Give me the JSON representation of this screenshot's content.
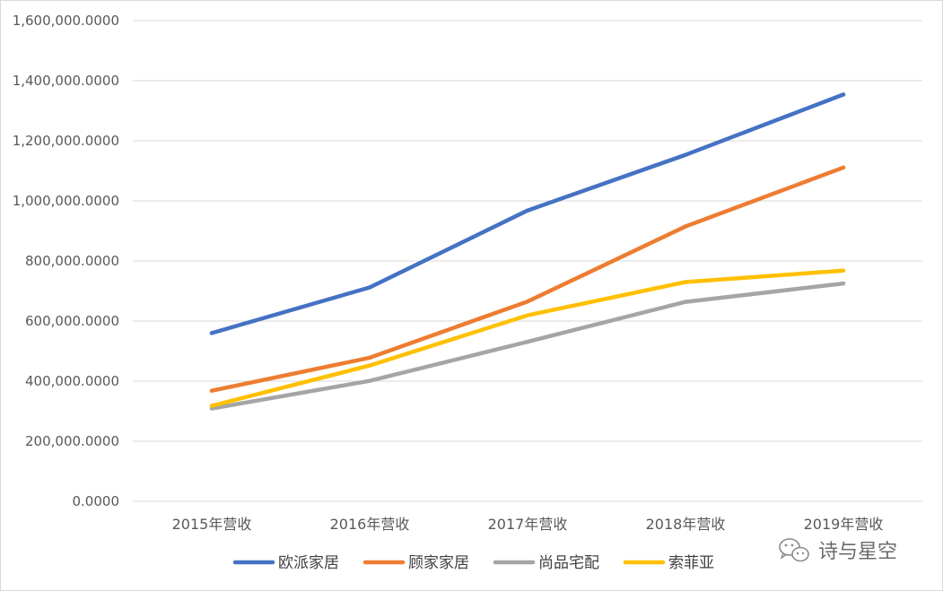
{
  "chart_data": {
    "type": "line",
    "title": "",
    "xlabel": "",
    "ylabel": "",
    "categories": [
      "2015年营收",
      "2016年营收",
      "2017年营收",
      "2018年营收",
      "2019年营收"
    ],
    "ylim": [
      0,
      1600000
    ],
    "y_ticks": [
      {
        "value": 0,
        "label": "0.0000"
      },
      {
        "value": 200000,
        "label": "200,000.0000"
      },
      {
        "value": 400000,
        "label": "400,000.0000"
      },
      {
        "value": 600000,
        "label": "600,000.0000"
      },
      {
        "value": 800000,
        "label": "800,000.0000"
      },
      {
        "value": 1000000,
        "label": "1,000,000.0000"
      },
      {
        "value": 1200000,
        "label": "1,200,000.0000"
      },
      {
        "value": 1400000,
        "label": "1,400,000.0000"
      },
      {
        "value": 1600000,
        "label": "1,600,000.0000"
      }
    ],
    "grid": "horizontal",
    "legend_position": "bottom",
    "series": [
      {
        "name": "欧派家居",
        "color": "#4472C4",
        "values": [
          560000,
          712000,
          968000,
          1153000,
          1354000
        ]
      },
      {
        "name": "顾家家居",
        "color": "#ED7D31",
        "values": [
          368000,
          478000,
          665000,
          915000,
          1111000
        ]
      },
      {
        "name": "尚品宅配",
        "color": "#A5A5A5",
        "values": [
          309000,
          401000,
          531000,
          664000,
          725000
        ]
      },
      {
        "name": "索菲亚",
        "color": "#FFC000",
        "values": [
          318000,
          452000,
          619000,
          730000,
          768000
        ]
      }
    ]
  },
  "watermark": {
    "text": "诗与星空",
    "icon": "wechat-icon"
  }
}
